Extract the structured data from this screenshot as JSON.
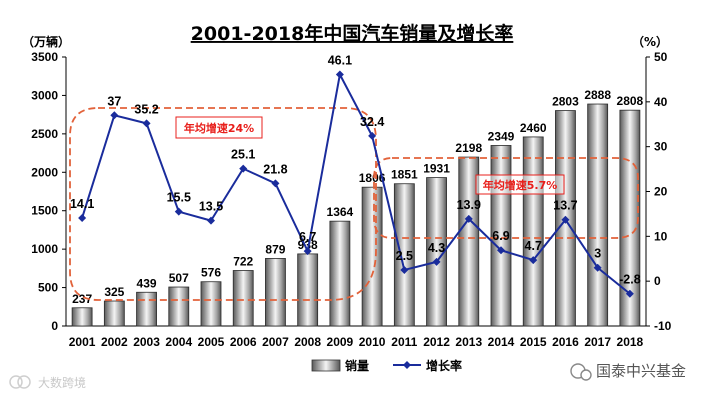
{
  "chart_data": {
    "type": "bar+line",
    "title": "2001-2018年中国汽车销量及增长率",
    "left_unit": "（万辆）",
    "right_unit": "（%）",
    "categories": [
      "2001",
      "2002",
      "2003",
      "2004",
      "2005",
      "2006",
      "2007",
      "2008",
      "2009",
      "2010",
      "2011",
      "2012",
      "2013",
      "2014",
      "2015",
      "2016",
      "2017",
      "2018"
    ],
    "series": [
      {
        "name": "销量",
        "type": "bar",
        "axis": "left",
        "values": [
          237,
          325,
          439,
          507,
          576,
          722,
          879,
          938,
          1364,
          1806,
          1851,
          1931,
          2198,
          2349,
          2460,
          2803,
          2888,
          2808
        ]
      },
      {
        "name": "增长率",
        "type": "line",
        "axis": "right",
        "color": "#1a2c9c",
        "values": [
          14.1,
          37,
          35.2,
          15.5,
          13.5,
          25.1,
          21.8,
          6.7,
          46.1,
          32.4,
          2.5,
          4.3,
          13.9,
          6.9,
          4.7,
          13.7,
          3,
          -2.8
        ],
        "labels": [
          "14.1",
          "37",
          "35.2",
          "15.5",
          "13.5",
          "25.1",
          "21.8",
          "6.7",
          "46.1",
          "32.4",
          "2.5",
          "4.3",
          "13.9",
          "6.9",
          "4.7",
          "13.7",
          "3",
          "-2.8"
        ]
      }
    ],
    "left_axis": {
      "min": 0,
      "max": 3500,
      "ticks": [
        0,
        500,
        1000,
        1500,
        2000,
        2500,
        3000,
        3500
      ]
    },
    "right_axis": {
      "min": -10,
      "max": 50,
      "ticks": [
        -10,
        0,
        10,
        20,
        30,
        40,
        50
      ]
    },
    "annotations": [
      {
        "text": "年均增速24%",
        "color": "#e8201c"
      },
      {
        "text": "年均增速5.7%",
        "color": "#e8201c"
      }
    ],
    "legend": {
      "position": "bottom",
      "bar_label": "销量",
      "line_label": "增长率"
    }
  },
  "watermarks": {
    "left": "大数跨境",
    "right": "国泰中兴基金"
  }
}
